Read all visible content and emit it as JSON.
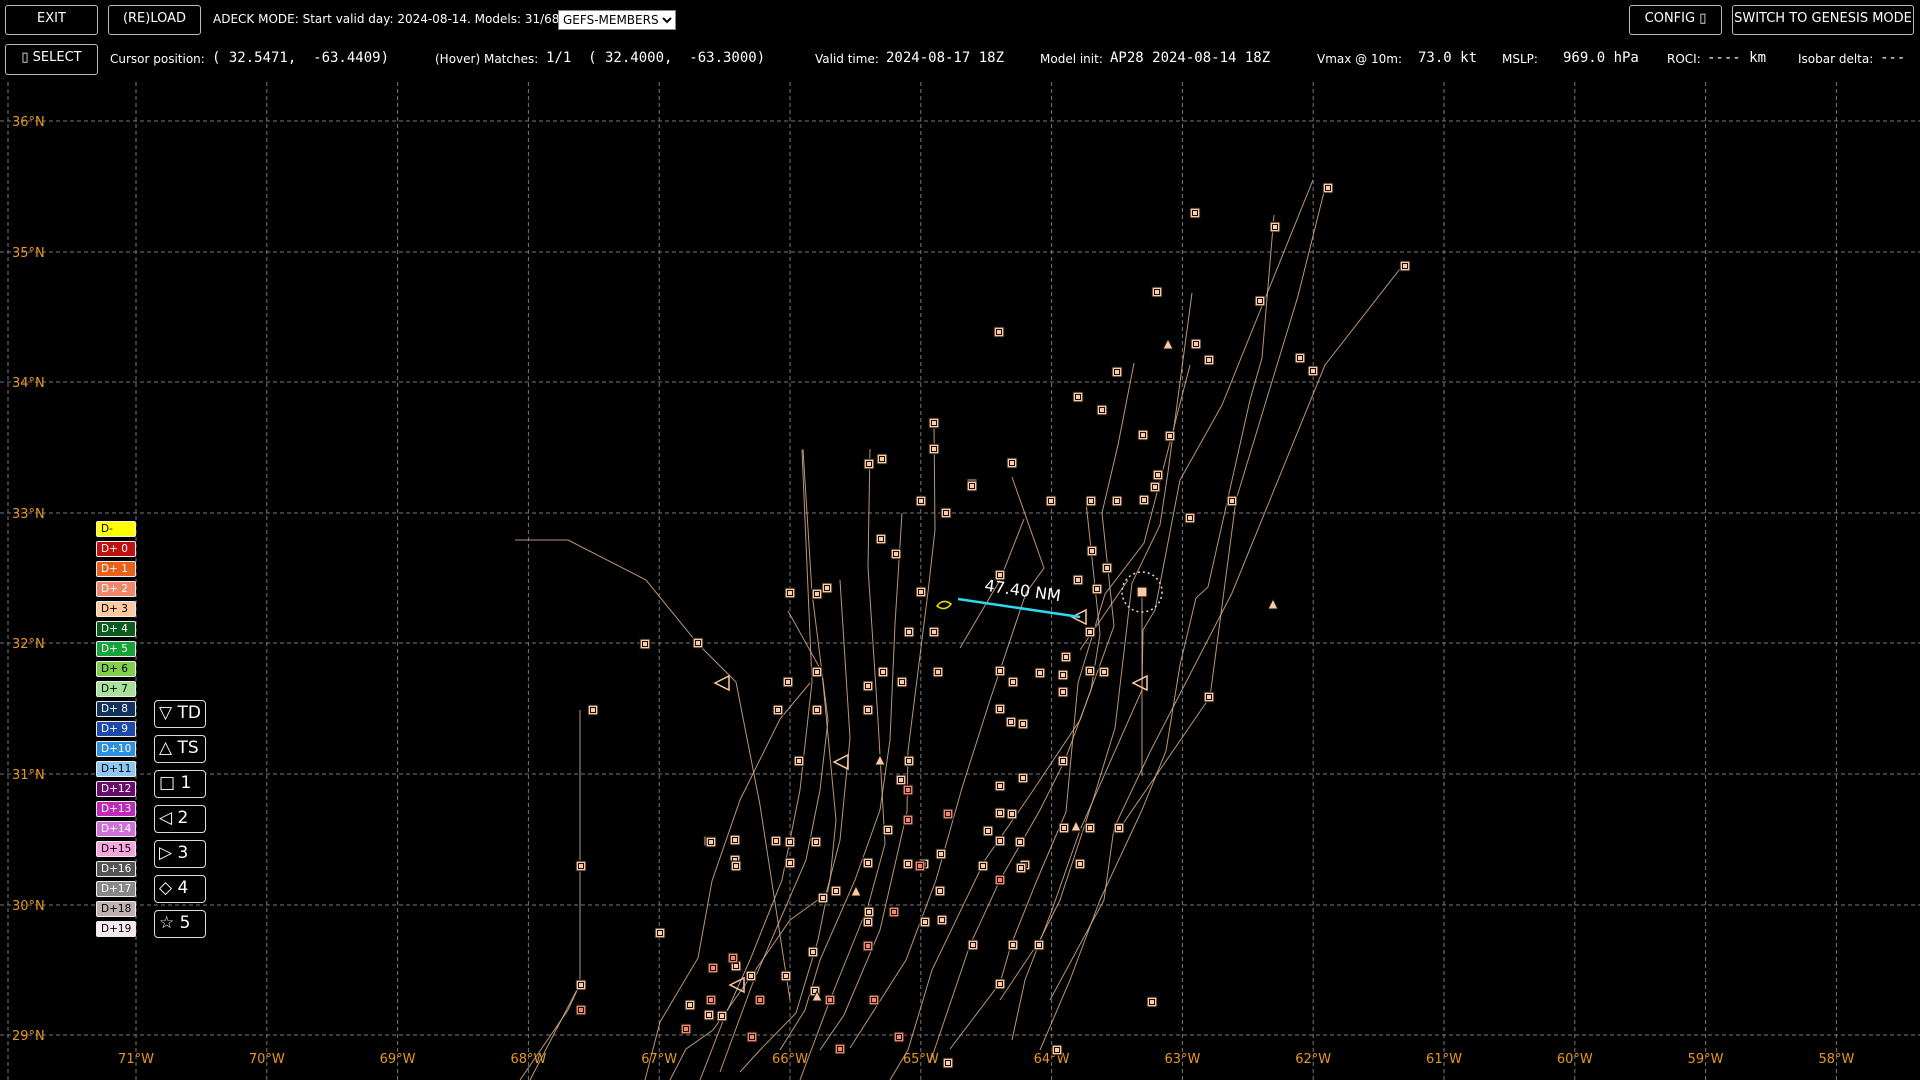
{
  "toolbar": {
    "exit_label": "EXIT",
    "reload_label": "(RE)LOAD",
    "mode_text": "ADECK MODE: Start valid day: 2024-08-14. Models: 31/68",
    "model_select": "GEFS-MEMBERS",
    "config_label": "CONFIG ▯",
    "switch_label": "SWITCH TO GENESIS MODE",
    "select_label": "▯ SELECT"
  },
  "status": {
    "cursor_label": "Cursor position:",
    "cursor_value": "( 32.5471,  -63.4409)",
    "hover_label": "(Hover) Matches:",
    "hover_value": "1/1  ( 32.4000,  -63.3000)",
    "valid_label": "Valid time:",
    "valid_value": "2024-08-17 18Z",
    "init_label": "Model init:",
    "init_value": "AP28 2024-08-14 18Z",
    "vmax_label": "Vmax @ 10m:",
    "vmax_value": "73.0 kt",
    "mslp_label": "MSLP:",
    "mslp_value": "969.0 hPa",
    "roci_label": "ROCI:",
    "roci_value": "---- km",
    "isobar_label": "Isobar delta:",
    "isobar_value": "---"
  },
  "map": {
    "lat_labels": [
      "36°N",
      "35°N",
      "34°N",
      "33°N",
      "32°N",
      "31°N",
      "30°N",
      "29°N"
    ],
    "lon_labels": [
      "71°W",
      "70°W",
      "69°W",
      "68°W",
      "67°W",
      "66°W",
      "65°W",
      "64°W",
      "63°W",
      "62°W",
      "61°W",
      "60°W",
      "59°W",
      "58°W"
    ],
    "measure_label": "47.40 NM",
    "label_color": "#e8961e",
    "track_color": "#d9b08c"
  },
  "legend": {
    "days": [
      {
        "label": "D-",
        "color": "#ffff00",
        "text": "#000"
      },
      {
        "label": "D+ 0",
        "color": "#c01010",
        "text": "#fff"
      },
      {
        "label": "D+ 1",
        "color": "#e8601a",
        "text": "#fff"
      },
      {
        "label": "D+ 2",
        "color": "#f0876a",
        "text": "#fff"
      },
      {
        "label": "D+ 3",
        "color": "#fcc9a0",
        "text": "#000"
      },
      {
        "label": "D+ 4",
        "color": "#0b5a1e",
        "text": "#fff"
      },
      {
        "label": "D+ 5",
        "color": "#18a23a",
        "text": "#fff"
      },
      {
        "label": "D+ 6",
        "color": "#7fcf4a",
        "text": "#000"
      },
      {
        "label": "D+ 7",
        "color": "#a8e29a",
        "text": "#000"
      },
      {
        "label": "D+ 8",
        "color": "#12325e",
        "text": "#fff"
      },
      {
        "label": "D+ 9",
        "color": "#1d49a8",
        "text": "#fff"
      },
      {
        "label": "D+10",
        "color": "#2c8fe0",
        "text": "#fff"
      },
      {
        "label": "D+11",
        "color": "#8ec8f2",
        "text": "#000"
      },
      {
        "label": "D+12",
        "color": "#6a0a6a",
        "text": "#fff"
      },
      {
        "label": "D+13",
        "color": "#c02ab8",
        "text": "#fff"
      },
      {
        "label": "D+14",
        "color": "#d070d8",
        "text": "#fff"
      },
      {
        "label": "D+15",
        "color": "#f6a6dc",
        "text": "#000"
      },
      {
        "label": "D+16",
        "color": "#555555",
        "text": "#fff"
      },
      {
        "label": "D+17",
        "color": "#888888",
        "text": "#fff"
      },
      {
        "label": "D+18",
        "color": "#c0b0b0",
        "text": "#000"
      },
      {
        "label": "D+19",
        "color": "#f6eaf0",
        "text": "#000"
      }
    ],
    "symbols": [
      "▽ TD",
      "△ TS",
      "□ 1",
      "◁ 2",
      "▷ 3",
      "◇ 4",
      "☆ 5"
    ]
  }
}
